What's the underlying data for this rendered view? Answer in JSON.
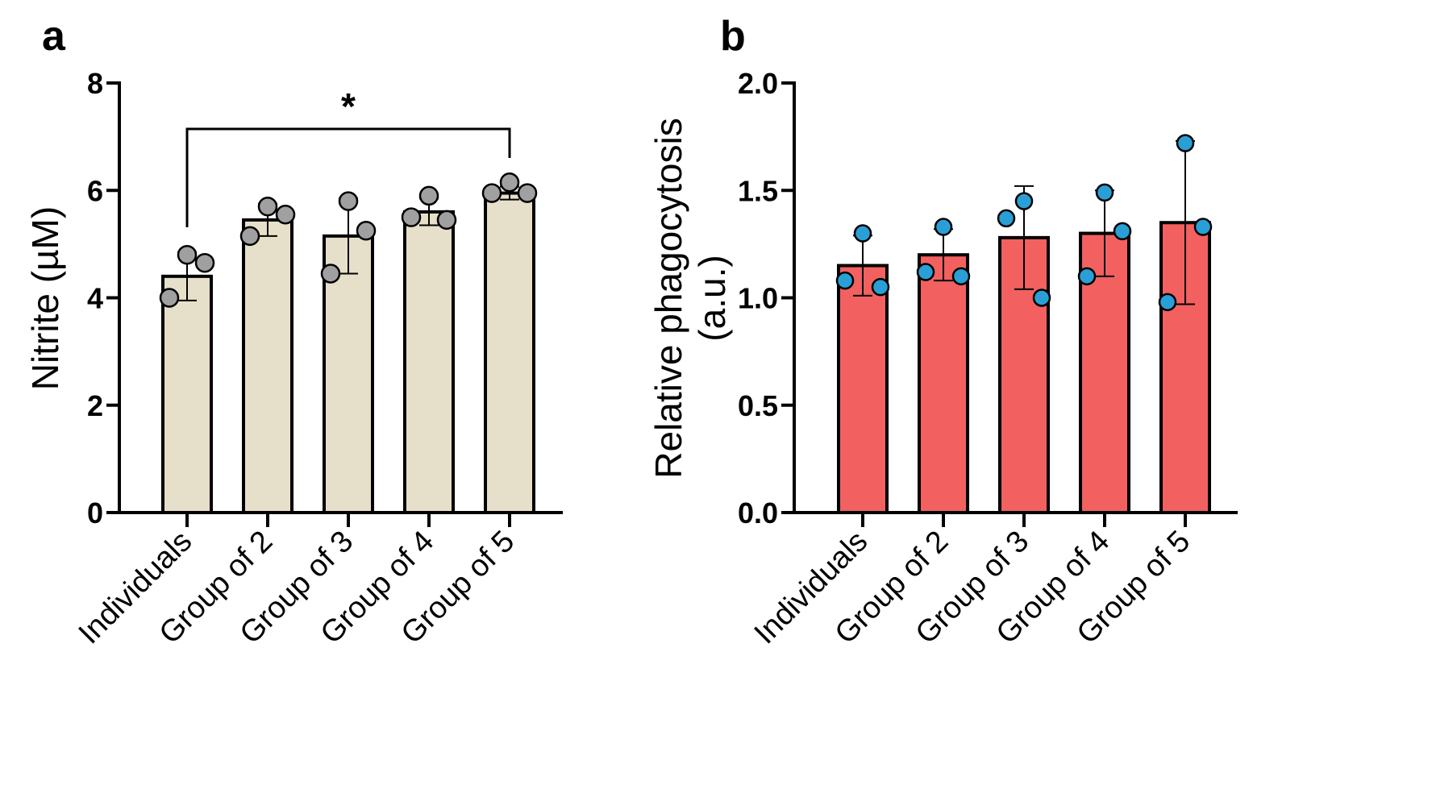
{
  "chart_data": [
    {
      "panel": "a",
      "type": "bar",
      "categories": [
        "Individuals",
        "Group of 2",
        "Group of 3",
        "Group of 4",
        "Group of 5"
      ],
      "values": [
        4.4,
        5.45,
        5.15,
        5.6,
        5.95
      ],
      "error": [
        0.45,
        0.3,
        0.7,
        0.25,
        0.12
      ],
      "points": [
        [
          4.8,
          4.65,
          4.0
        ],
        [
          5.7,
          5.55,
          5.15
        ],
        [
          5.8,
          5.25,
          4.45
        ],
        [
          5.9,
          5.45,
          5.5
        ],
        [
          6.15,
          5.95,
          5.95
        ]
      ],
      "ylabel": "Nitrite (µM)",
      "xlabel": "",
      "ylim": [
        0,
        8
      ],
      "yticks": [
        "0",
        "2",
        "4",
        "6",
        "8"
      ],
      "significance": {
        "from": "Individuals",
        "to": "Group of 5",
        "label": "*"
      },
      "bar_color": "#e6dfca",
      "point_color": "#a0a0a0"
    },
    {
      "panel": "b",
      "type": "bar",
      "categories": [
        "Individuals",
        "Group of 2",
        "Group of 3",
        "Group of 4",
        "Group of 5"
      ],
      "values": [
        1.15,
        1.2,
        1.28,
        1.3,
        1.35
      ],
      "error": [
        0.14,
        0.12,
        0.24,
        0.2,
        0.38
      ],
      "points": [
        [
          1.3,
          1.05,
          1.08
        ],
        [
          1.33,
          1.1,
          1.12
        ],
        [
          1.45,
          1.0,
          1.37
        ],
        [
          1.49,
          1.31,
          1.1
        ],
        [
          1.72,
          1.33,
          0.98
        ]
      ],
      "ylabel": "Relative phagocytosis\n(a.u.)",
      "xlabel": "",
      "ylim": [
        0,
        2
      ],
      "yticks": [
        "0.0",
        "0.5",
        "1.0",
        "1.5",
        "2.0"
      ],
      "bar_color": "#f26060",
      "point_color": "#2a9fd6"
    }
  ]
}
